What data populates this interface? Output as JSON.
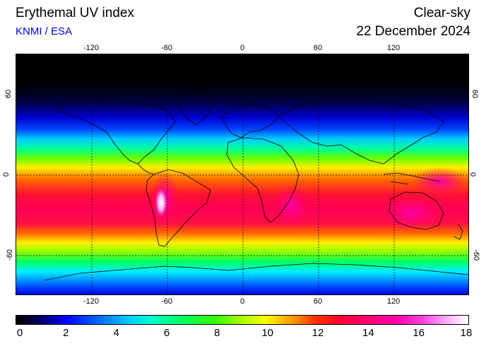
{
  "header": {
    "title": "Erythemal UV index",
    "subtitle": "KNMI / ESA",
    "condition": "Clear-sky",
    "date": "22 December 2024"
  },
  "map": {
    "projection": "equirectangular",
    "lon_range": [
      -180,
      180
    ],
    "lat_range": [
      -90,
      90
    ],
    "lon_tick_labels": [
      "-120",
      "-60",
      "0",
      "60",
      "120"
    ],
    "lon_ticks": [
      -120,
      -60,
      0,
      60,
      120
    ],
    "lat_tick_labels": [
      "60",
      "0",
      "-60"
    ],
    "lat_ticks": [
      60,
      0,
      -60
    ],
    "grid": "dashed"
  },
  "colorbar": {
    "tick_labels": [
      "0",
      "2",
      "4",
      "6",
      "8",
      "10",
      "12",
      "14",
      "16",
      "18"
    ],
    "ticks": [
      0,
      2,
      4,
      6,
      8,
      10,
      12,
      14,
      16,
      18
    ],
    "range": [
      0,
      18
    ]
  }
}
